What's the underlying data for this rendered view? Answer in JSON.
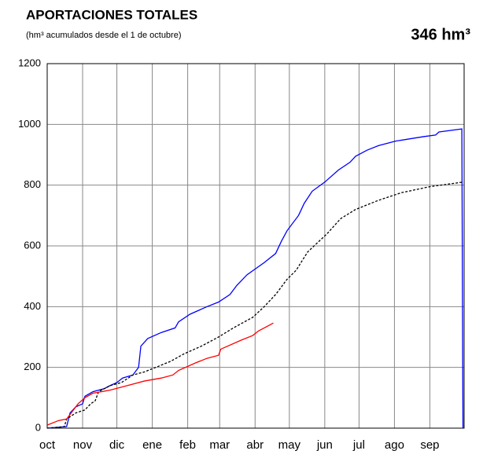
{
  "chart_data": {
    "type": "line",
    "title": "APORTACIONES TOTALES",
    "subtitle": "(hm³ acumulados desde el 1 de octubre)",
    "annotation": "346 hm³",
    "xlim": [
      0,
      365
    ],
    "xticks": [
      {
        "value": 0,
        "label": "oct"
      },
      {
        "value": 31,
        "label": "nov"
      },
      {
        "value": 61,
        "label": "dic"
      },
      {
        "value": 92,
        "label": "ene"
      },
      {
        "value": 123,
        "label": "feb"
      },
      {
        "value": 151,
        "label": "mar"
      },
      {
        "value": 182,
        "label": "abr"
      },
      {
        "value": 212,
        "label": "may"
      },
      {
        "value": 243,
        "label": "jun"
      },
      {
        "value": 273,
        "label": "jul"
      },
      {
        "value": 304,
        "label": "ago"
      },
      {
        "value": 335,
        "label": "sep"
      }
    ],
    "ylim": [
      0,
      1200
    ],
    "yticks": [
      0,
      200,
      400,
      600,
      800,
      1000,
      1200
    ],
    "grid": true,
    "series": [
      {
        "color": "#0000ff",
        "dashed": false,
        "x": [
          0,
          17,
          20,
          25,
          31,
          33,
          40,
          50,
          55,
          61,
          66,
          75,
          78,
          80,
          82,
          88,
          100,
          112,
          115,
          125,
          140,
          150,
          160,
          166,
          175,
          190,
          200,
          205,
          210,
          220,
          225,
          232,
          243,
          255,
          265,
          270,
          280,
          290,
          305,
          330,
          340,
          343,
          363,
          364
        ],
        "values": [
          0,
          5,
          50,
          70,
          80,
          105,
          120,
          130,
          140,
          150,
          165,
          175,
          190,
          200,
          270,
          295,
          315,
          330,
          350,
          375,
          400,
          415,
          440,
          470,
          505,
          545,
          575,
          615,
          650,
          700,
          740,
          780,
          810,
          850,
          875,
          895,
          915,
          930,
          945,
          960,
          965,
          975,
          985,
          0
        ]
      },
      {
        "color": "#000000",
        "dashed": true,
        "x": [
          0,
          15,
          17,
          25,
          33,
          38,
          42,
          45,
          55,
          65,
          75,
          85,
          95,
          108,
          120,
          135,
          150,
          163,
          180,
          190,
          200,
          210,
          218,
          228,
          245,
          257,
          270,
          290,
          310,
          335,
          364
        ],
        "values": [
          0,
          5,
          30,
          50,
          60,
          80,
          90,
          120,
          140,
          150,
          175,
          185,
          200,
          220,
          245,
          270,
          300,
          330,
          365,
          400,
          440,
          490,
          520,
          580,
          640,
          690,
          720,
          750,
          775,
          795,
          810
        ]
      },
      {
        "color": "#ff0000",
        "dashed": false,
        "x": [
          0,
          10,
          17,
          20,
          27,
          33,
          40,
          55,
          70,
          85,
          100,
          110,
          115,
          130,
          140,
          150,
          152,
          170,
          180,
          185,
          195,
          198
        ],
        "values": [
          10,
          25,
          30,
          45,
          80,
          100,
          115,
          125,
          140,
          155,
          165,
          175,
          190,
          215,
          230,
          240,
          260,
          290,
          305,
          320,
          340,
          346
        ]
      }
    ]
  }
}
